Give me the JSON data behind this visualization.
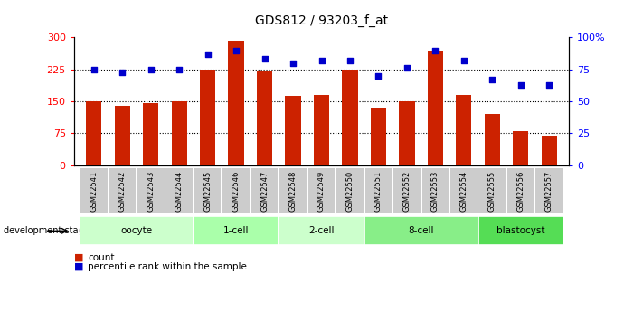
{
  "title": "GDS812 / 93203_f_at",
  "samples": [
    "GSM22541",
    "GSM22542",
    "GSM22543",
    "GSM22544",
    "GSM22545",
    "GSM22546",
    "GSM22547",
    "GSM22548",
    "GSM22549",
    "GSM22550",
    "GSM22551",
    "GSM22552",
    "GSM22553",
    "GSM22554",
    "GSM22555",
    "GSM22556",
    "GSM22557"
  ],
  "counts": [
    150,
    140,
    145,
    150,
    225,
    293,
    220,
    162,
    165,
    225,
    135,
    150,
    270,
    165,
    120,
    80,
    70
  ],
  "percentiles": [
    75,
    73,
    75,
    75,
    87,
    90,
    83,
    80,
    82,
    82,
    70,
    76,
    90,
    82,
    67,
    63,
    63
  ],
  "groups": [
    {
      "label": "oocyte",
      "start": 0,
      "end": 3,
      "color": "#ccffcc"
    },
    {
      "label": "1-cell",
      "start": 4,
      "end": 6,
      "color": "#aaffaa"
    },
    {
      "label": "2-cell",
      "start": 7,
      "end": 9,
      "color": "#ccffcc"
    },
    {
      "label": "8-cell",
      "start": 10,
      "end": 13,
      "color": "#88ee88"
    },
    {
      "label": "blastocyst",
      "start": 14,
      "end": 16,
      "color": "#55dd55"
    }
  ],
  "bar_color": "#cc2200",
  "dot_color": "#0000cc",
  "left_ylim": [
    0,
    300
  ],
  "right_ylim": [
    0,
    100
  ],
  "left_yticks": [
    0,
    75,
    150,
    225,
    300
  ],
  "right_yticks": [
    0,
    25,
    50,
    75,
    100
  ],
  "right_yticklabels": [
    "0",
    "25",
    "50",
    "75",
    "100%"
  ],
  "hline_values": [
    75,
    150,
    225
  ],
  "tick_label_bg": "#cccccc",
  "plot_bg": "#ffffff"
}
